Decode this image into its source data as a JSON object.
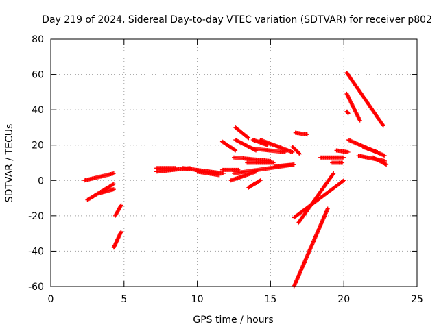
{
  "chart_data": {
    "type": "scatter",
    "title": "Day 219 of 2024, Sidereal Day-to-day VTEC variation (SDTVAR) for receiver p802",
    "xlabel": "GPS time / hours",
    "ylabel": "SDTVAR / TECUs",
    "xlim": [
      0,
      25
    ],
    "ylim": [
      -60,
      80
    ],
    "xticks": [
      0,
      5,
      10,
      15,
      20,
      25
    ],
    "yticks": [
      -60,
      -40,
      -20,
      0,
      20,
      40,
      60,
      80
    ],
    "grid": true,
    "legend": "none",
    "marker": "+",
    "color": "#ff0000",
    "tracks": [
      {
        "x0": 2.3,
        "y0": 0,
        "x1": 4.3,
        "y1": 4
      },
      {
        "x0": 2.5,
        "y0": -11,
        "x1": 4.3,
        "y1": -2
      },
      {
        "x0": 3.4,
        "y0": -7,
        "x1": 4.3,
        "y1": -5
      },
      {
        "x0": 4.4,
        "y0": -20,
        "x1": 4.8,
        "y1": -14
      },
      {
        "x0": 4.3,
        "y0": -38,
        "x1": 4.8,
        "y1": -29
      },
      {
        "x0": 7.2,
        "y0": 5,
        "x1": 9.5,
        "y1": 7
      },
      {
        "x0": 7.2,
        "y0": 7,
        "x1": 8.5,
        "y1": 7
      },
      {
        "x0": 9.0,
        "y0": 7,
        "x1": 11.8,
        "y1": 4
      },
      {
        "x0": 10.0,
        "y0": 5,
        "x1": 11.5,
        "y1": 3
      },
      {
        "x0": 11.7,
        "y0": 6,
        "x1": 12.8,
        "y1": 6
      },
      {
        "x0": 11.7,
        "y0": 22,
        "x1": 12.6,
        "y1": 17
      },
      {
        "x0": 12.6,
        "y0": 30,
        "x1": 13.5,
        "y1": 24
      },
      {
        "x0": 12.6,
        "y0": 23,
        "x1": 14.0,
        "y1": 17
      },
      {
        "x0": 12.5,
        "y0": 13,
        "x1": 15.0,
        "y1": 11
      },
      {
        "x0": 12.5,
        "y0": 4,
        "x1": 16.6,
        "y1": 9
      },
      {
        "x0": 12.3,
        "y0": 0,
        "x1": 14.0,
        "y1": 5
      },
      {
        "x0": 13.8,
        "y0": 23,
        "x1": 14.8,
        "y1": 20
      },
      {
        "x0": 13.8,
        "y0": 18,
        "x1": 16.0,
        "y1": 16
      },
      {
        "x0": 14.3,
        "y0": 23,
        "x1": 16.5,
        "y1": 16
      },
      {
        "x0": 13.4,
        "y0": 10,
        "x1": 15.2,
        "y1": 10
      },
      {
        "x0": 15.3,
        "y0": 8,
        "x1": 16.6,
        "y1": 9
      },
      {
        "x0": 13.5,
        "y0": -4,
        "x1": 14.3,
        "y1": 0
      },
      {
        "x0": 16.5,
        "y0": 19,
        "x1": 17.0,
        "y1": 15
      },
      {
        "x0": 16.7,
        "y0": 27,
        "x1": 17.5,
        "y1": 26
      },
      {
        "x0": 16.6,
        "y0": -60,
        "x1": 18.9,
        "y1": -16
      },
      {
        "x0": 16.9,
        "y0": -24,
        "x1": 19.3,
        "y1": 4
      },
      {
        "x0": 16.6,
        "y0": -21,
        "x1": 20.0,
        "y1": 0
      },
      {
        "x0": 18.4,
        "y0": 13,
        "x1": 20.0,
        "y1": 13
      },
      {
        "x0": 19.2,
        "y0": 10,
        "x1": 19.9,
        "y1": 10
      },
      {
        "x0": 19.5,
        "y0": 17,
        "x1": 20.3,
        "y1": 16
      },
      {
        "x0": 20.2,
        "y0": 61,
        "x1": 22.7,
        "y1": 31
      },
      {
        "x0": 20.2,
        "y0": 49,
        "x1": 21.1,
        "y1": 34
      },
      {
        "x0": 20.2,
        "y0": 39,
        "x1": 20.3,
        "y1": 38
      },
      {
        "x0": 20.3,
        "y0": 23,
        "x1": 22.8,
        "y1": 14
      },
      {
        "x0": 21.3,
        "y0": 19,
        "x1": 22.3,
        "y1": 16
      },
      {
        "x0": 21.0,
        "y0": 14,
        "x1": 22.8,
        "y1": 11
      },
      {
        "x0": 22.0,
        "y0": 13,
        "x1": 22.9,
        "y1": 9
      }
    ]
  }
}
